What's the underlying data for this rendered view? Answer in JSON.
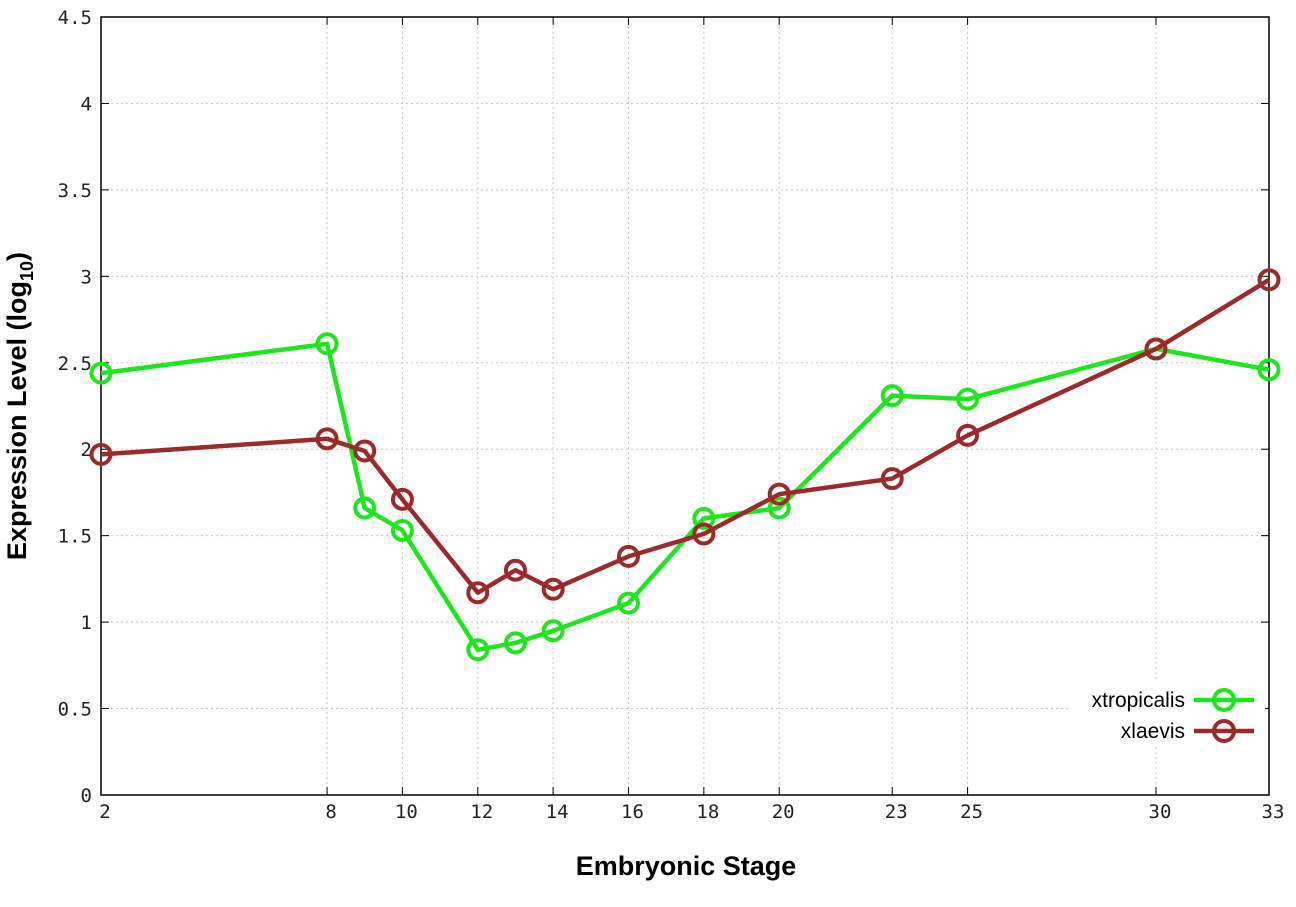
{
  "chart_data": {
    "type": "line",
    "xlabel": "Embryonic Stage",
    "ylabel_main": "Expression Level (log",
    "ylabel_sub": "10",
    "ylabel_close": ")",
    "xlim": [
      2,
      33
    ],
    "ylim": [
      0,
      4.5
    ],
    "x_ticks": [
      2,
      8,
      10,
      12,
      14,
      16,
      18,
      20,
      23,
      25,
      30,
      33
    ],
    "y_ticks": [
      0,
      0.5,
      1,
      1.5,
      2,
      2.5,
      3,
      3.5,
      4,
      4.5
    ],
    "y_tick_labels": [
      "0",
      "0.5",
      "1",
      "1.5",
      "2",
      "2.5",
      "3",
      "3.5",
      "4",
      "4.5"
    ],
    "grid": true,
    "legend_position": "bottom-right",
    "series": [
      {
        "name": "xtropicalis",
        "color": "#1ee61e",
        "x": [
          2,
          8,
          9,
          10,
          12,
          13,
          14,
          16,
          18,
          20,
          23,
          25,
          30,
          33
        ],
        "y": [
          2.44,
          2.61,
          1.66,
          1.53,
          0.84,
          0.88,
          0.95,
          1.11,
          1.6,
          1.66,
          2.31,
          2.29,
          2.58,
          2.46
        ]
      },
      {
        "name": "xlaevis",
        "color": "#9b2a2a",
        "x": [
          2,
          8,
          9,
          10,
          12,
          13,
          14,
          16,
          18,
          20,
          23,
          25,
          30,
          33
        ],
        "y": [
          1.97,
          2.06,
          1.99,
          1.71,
          1.17,
          1.3,
          1.19,
          1.38,
          1.51,
          1.74,
          1.83,
          2.08,
          2.58,
          2.98
        ]
      }
    ]
  }
}
